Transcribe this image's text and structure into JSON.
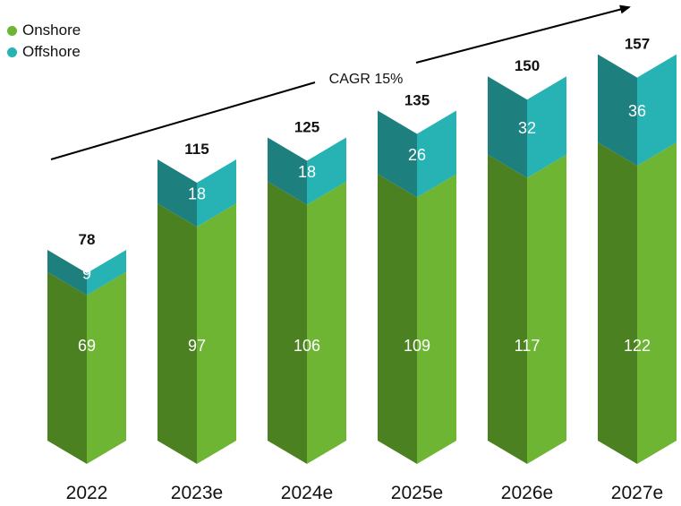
{
  "chart_data": {
    "type": "bar",
    "stacked": true,
    "categories": [
      "2022",
      "2023e",
      "2024e",
      "2025e",
      "2026e",
      "2027e"
    ],
    "series": [
      {
        "name": "Onshore",
        "values": [
          69,
          97,
          106,
          109,
          117,
          122
        ]
      },
      {
        "name": "Offshore",
        "values": [
          9,
          18,
          18,
          26,
          32,
          36
        ]
      }
    ],
    "totals": [
      78,
      115,
      125,
      135,
      150,
      157
    ],
    "annotation": "CAGR 15%",
    "legend_position": "top-left",
    "grid": false,
    "axes_visible": false
  },
  "colors": {
    "onshore_front": "#6db533",
    "onshore_side": "#4c8122",
    "offshore_front": "#27b3b3",
    "offshore_side": "#1e7f7f"
  }
}
